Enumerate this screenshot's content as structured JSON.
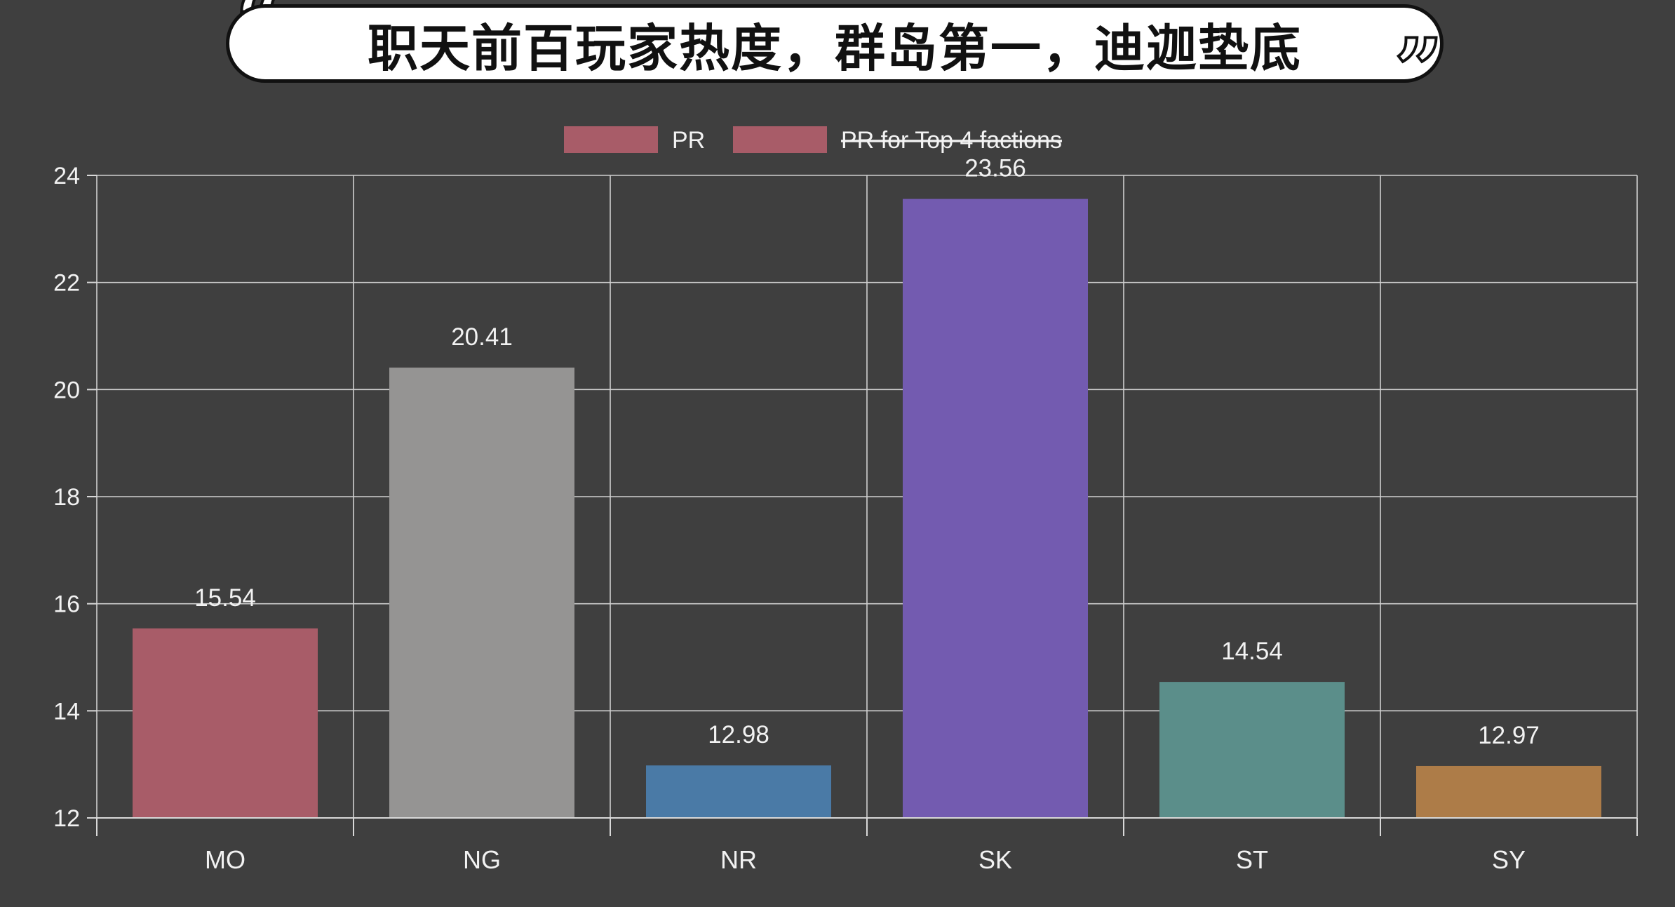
{
  "title": "职天前百玩家热度，群岛第一，迪迦垫底",
  "quote_open": "“",
  "quote_close": "”",
  "chart_data": {
    "type": "bar",
    "categories": [
      "MO",
      "NG",
      "NR",
      "SK",
      "ST",
      "SY"
    ],
    "series": [
      {
        "name": "PR",
        "values": [
          15.54,
          20.41,
          12.98,
          23.56,
          14.54,
          12.97
        ],
        "data_labels": [
          "15.54",
          "20.41",
          "12.98",
          "23.56",
          "14.54",
          "12.97"
        ],
        "colors": [
          "#a85c68",
          "#959493",
          "#4a7aa6",
          "#735bb0",
          "#5b8e8a",
          "#ad7c48"
        ]
      },
      {
        "name": "PR for Top 4 factions",
        "hidden": true,
        "color": "#a85c68"
      }
    ],
    "ylim": [
      12,
      24
    ],
    "yticks": [
      "12",
      "14",
      "16",
      "18",
      "20",
      "22",
      "24"
    ],
    "xlabel": "",
    "ylabel": "",
    "grid": true,
    "legend_position": "top-center",
    "background": "#3f3f3f"
  }
}
